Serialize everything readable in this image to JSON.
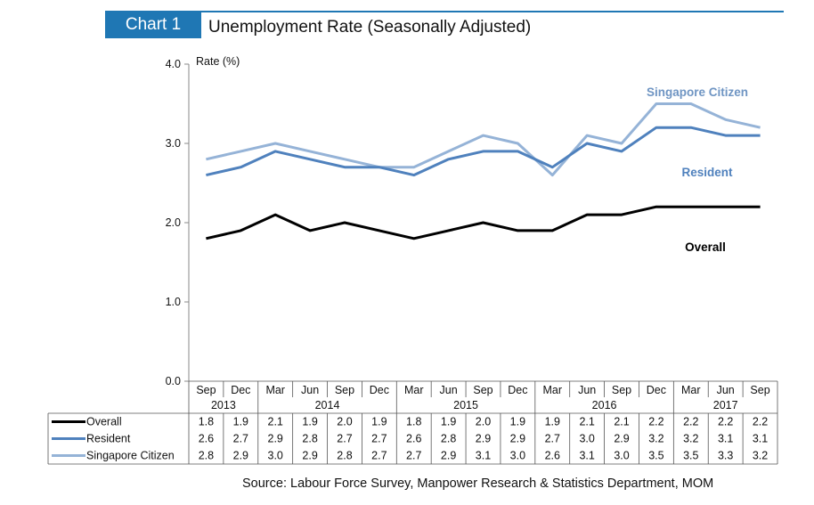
{
  "header": {
    "tag": "Chart 1",
    "title": "Unemployment Rate (Seasonally Adjusted)"
  },
  "source": "Source: Labour Force Survey, Manpower Research & Statistics Department, MOM",
  "chart_data": {
    "type": "line",
    "title": "Unemployment Rate (Seasonally Adjusted)",
    "ylabel": "Rate (%)",
    "ylim": [
      0,
      4
    ],
    "yticks": [
      "0.0",
      "1.0",
      "2.0",
      "3.0",
      "4.0"
    ],
    "grid": false,
    "categories": [
      "Sep",
      "Dec",
      "Mar",
      "Jun",
      "Sep",
      "Dec",
      "Mar",
      "Jun",
      "Sep",
      "Dec",
      "Mar",
      "Jun",
      "Sep",
      "Dec",
      "Mar",
      "Jun",
      "Sep"
    ],
    "years": [
      {
        "label": "2013",
        "span": 2
      },
      {
        "label": "2014",
        "span": 4
      },
      {
        "label": "2015",
        "span": 4
      },
      {
        "label": "2016",
        "span": 4
      },
      {
        "label": "2017",
        "span": 3
      }
    ],
    "series": [
      {
        "name": "Overall",
        "color": "#000000",
        "label_text": "Overall",
        "values": [
          1.8,
          1.9,
          2.1,
          1.9,
          2.0,
          1.9,
          1.8,
          1.9,
          2.0,
          1.9,
          1.9,
          2.1,
          2.1,
          2.2,
          2.2,
          2.2,
          2.2
        ]
      },
      {
        "name": "Resident",
        "color": "#4f81bd",
        "label_text": "Resident",
        "values": [
          2.6,
          2.7,
          2.9,
          2.8,
          2.7,
          2.7,
          2.6,
          2.8,
          2.9,
          2.9,
          2.7,
          3.0,
          2.9,
          3.2,
          3.2,
          3.1,
          3.1
        ]
      },
      {
        "name": "Singapore Citizen",
        "color": "#95b3d7",
        "label_text": "Singapore Citizen",
        "values": [
          2.8,
          2.9,
          3.0,
          2.9,
          2.8,
          2.7,
          2.7,
          2.9,
          3.1,
          3.0,
          2.6,
          3.1,
          3.0,
          3.5,
          3.5,
          3.3,
          3.2
        ]
      }
    ]
  }
}
